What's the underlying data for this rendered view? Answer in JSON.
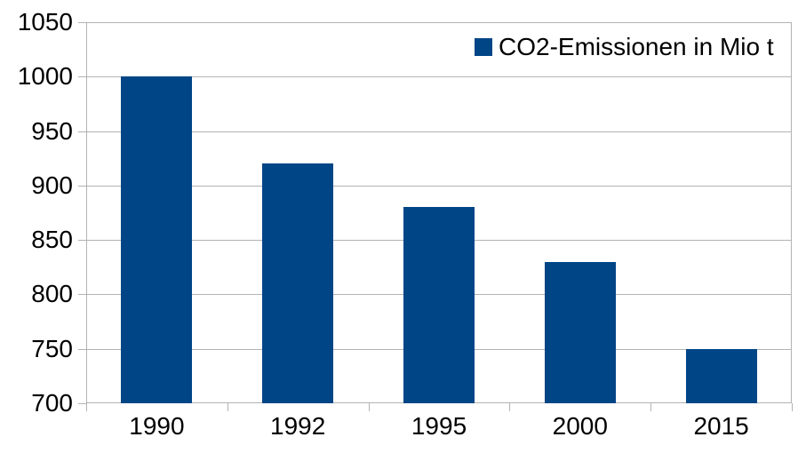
{
  "legend": {
    "label": "CO2-Emissionen in Mio t"
  },
  "colors": {
    "bar": "#004586",
    "grid": "#b3b3b3",
    "axis": "#b3b3b3",
    "text": "#000000",
    "background": "#ffffff"
  },
  "chart_data": {
    "type": "bar",
    "title": "",
    "xlabel": "",
    "ylabel": "",
    "categories": [
      "1990",
      "1992",
      "1995",
      "2000",
      "2015"
    ],
    "series": [
      {
        "name": "CO2-Emissionen in Mio t",
        "values": [
          1000,
          920,
          880,
          830,
          750
        ]
      }
    ],
    "ylim": [
      700,
      1050
    ],
    "ytick_step": 50,
    "yticks": [
      700,
      750,
      800,
      850,
      900,
      950,
      1000,
      1050
    ],
    "grid": "horizontal",
    "legend_position": "top-right-inside"
  }
}
